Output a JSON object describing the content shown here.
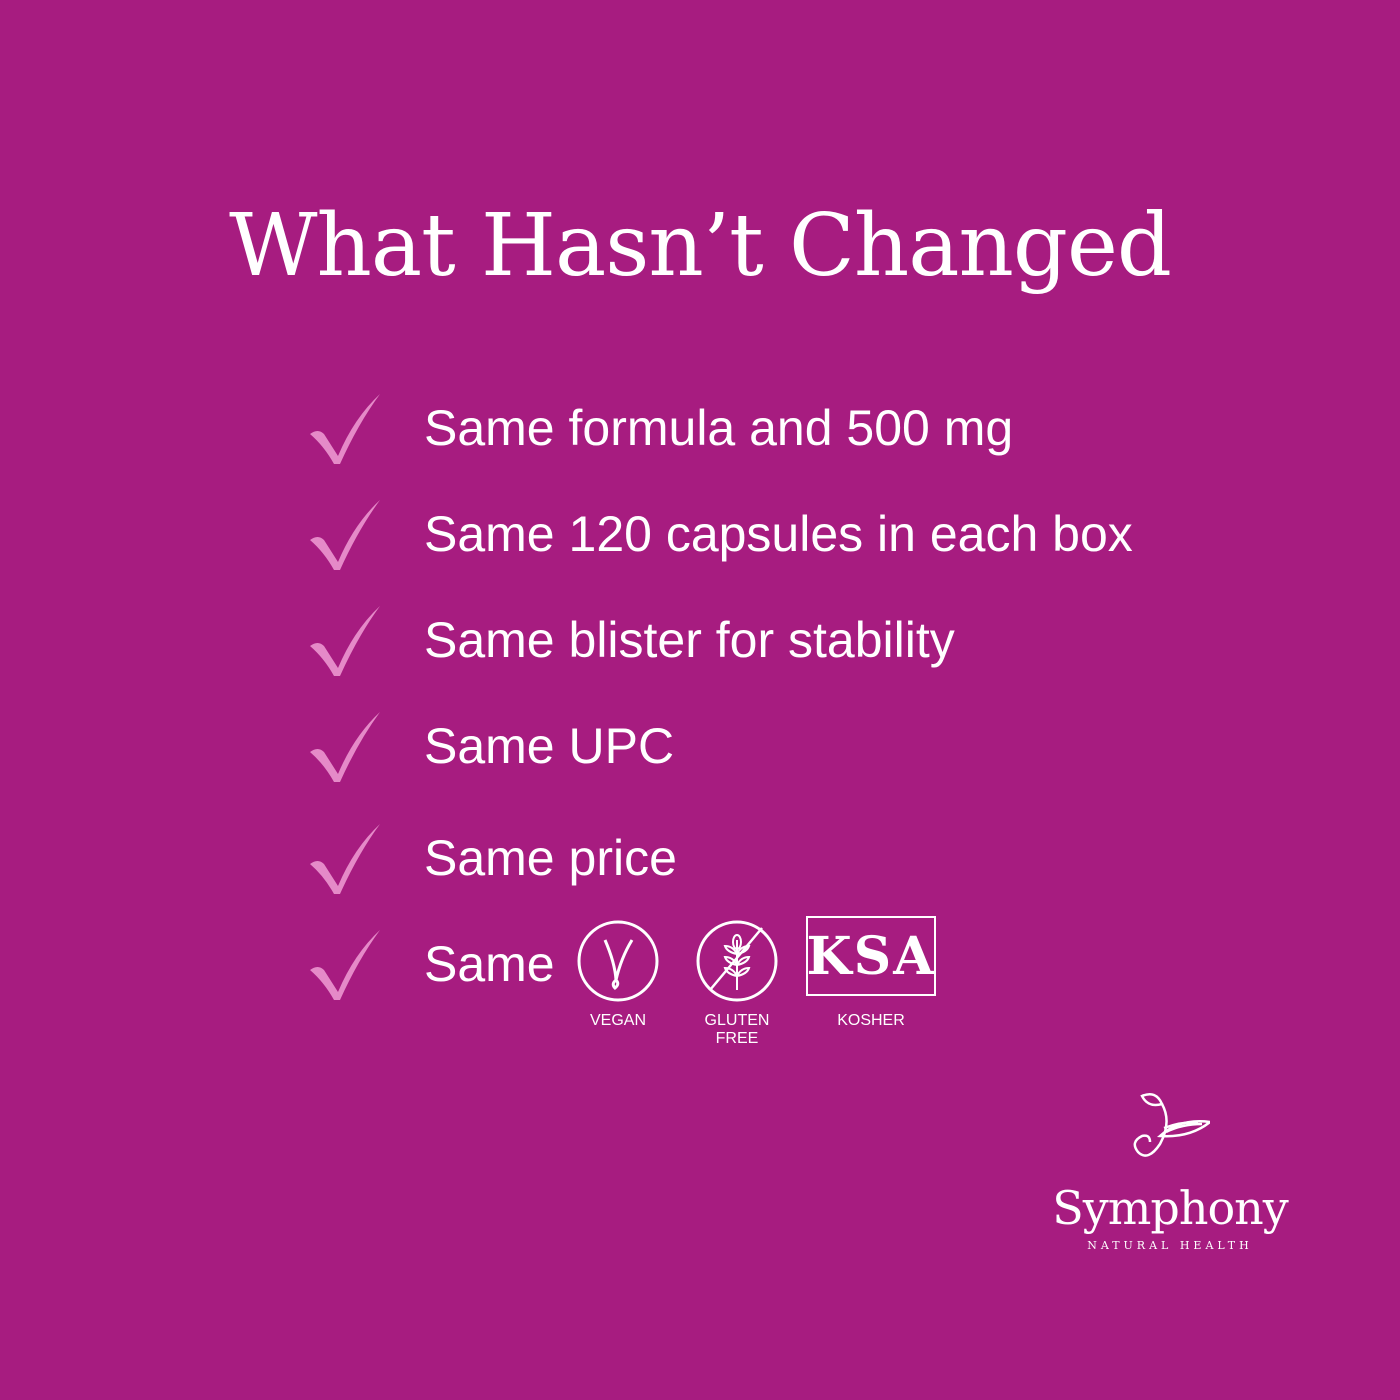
{
  "title": "What Hasn’t Changed",
  "colors": {
    "background": "#a71c80",
    "check": "#e58ac8",
    "text": "#ffffff"
  },
  "items": [
    {
      "icon": "checkmark-icon",
      "label": "Same formula and 500 mg"
    },
    {
      "icon": "checkmark-icon",
      "label": "Same 120 capsules in each box"
    },
    {
      "icon": "checkmark-icon",
      "label": "Same blister for stability"
    },
    {
      "icon": "checkmark-icon",
      "label": "Same UPC"
    },
    {
      "icon": "checkmark-icon",
      "label": "Same price"
    },
    {
      "icon": "checkmark-icon",
      "label": "Same"
    }
  ],
  "badges": [
    {
      "icon": "vegan-icon",
      "label": "VEGAN"
    },
    {
      "icon": "gluten-free-icon",
      "label": "GLUTEN FREE"
    },
    {
      "icon": "kosher-icon",
      "label": "KOSHER",
      "mark": "KSA"
    }
  ],
  "logo": {
    "name": "Symphony",
    "tagline": "NATURAL HEALTH"
  }
}
